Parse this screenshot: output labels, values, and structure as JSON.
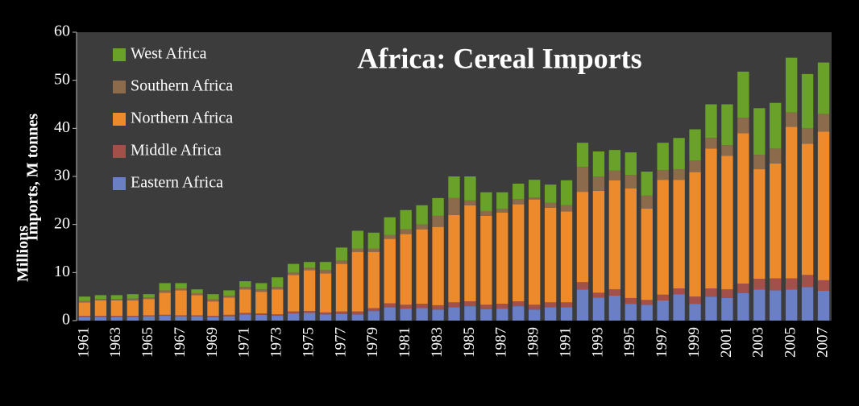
{
  "chart_data": {
    "type": "stacked_bar",
    "title": "Africa: Cereal Imports",
    "y_label": "Imports, M tonnes",
    "y_unit_label": "Millions",
    "categories": [
      "1961",
      null,
      "1963",
      null,
      "1965",
      null,
      "1967",
      null,
      "1969",
      null,
      "1971",
      null,
      "1973",
      null,
      "1975",
      null,
      "1977",
      null,
      "1979",
      null,
      "1981",
      null,
      "1983",
      null,
      "1985",
      null,
      "1987",
      null,
      "1989",
      null,
      "1991",
      null,
      "1993",
      null,
      "1995",
      null,
      "1997",
      null,
      "1999",
      null,
      "2001",
      null,
      "2003",
      null,
      "2005",
      null,
      "2007"
    ],
    "series": [
      {
        "name": "Eastern Africa",
        "color": "#6b7fc4",
        "values": [
          0.8,
          0.8,
          0.8,
          0.8,
          0.9,
          1.0,
          0.9,
          0.9,
          0.8,
          0.9,
          1.3,
          1.2,
          1.0,
          1.5,
          1.6,
          1.3,
          1.4,
          1.3,
          2.0,
          2.8,
          2.5,
          2.6,
          2.3,
          2.8,
          3.0,
          2.4,
          2.5,
          3.0,
          2.3,
          2.8,
          2.8,
          6.5,
          4.8,
          5.2,
          3.5,
          3.3,
          4.2,
          5.5,
          3.5,
          5.0,
          4.7,
          5.7,
          6.5,
          6.3,
          6.5,
          7.0,
          6.2
        ]
      },
      {
        "name": "Middle Africa",
        "color": "#a34f4a",
        "values": [
          0.2,
          0.2,
          0.2,
          0.2,
          0.2,
          0.2,
          0.2,
          0.2,
          0.2,
          0.3,
          0.3,
          0.3,
          0.3,
          0.4,
          0.4,
          0.4,
          0.5,
          0.6,
          0.6,
          0.8,
          0.8,
          0.9,
          0.9,
          1.0,
          1.0,
          0.9,
          1.0,
          1.0,
          1.0,
          1.0,
          1.0,
          1.5,
          1.0,
          1.3,
          1.2,
          1.0,
          1.2,
          1.2,
          1.5,
          1.7,
          1.8,
          2.0,
          2.2,
          2.5,
          2.3,
          2.5,
          2.2
        ]
      },
      {
        "name": "Northern Africa",
        "color": "#ed8a2b",
        "values": [
          2.8,
          3.2,
          3.2,
          3.2,
          3.4,
          4.6,
          5.2,
          4.2,
          3.0,
          3.6,
          4.9,
          4.5,
          5.2,
          7.6,
          8.5,
          8.1,
          9.9,
          12.4,
          11.7,
          13.4,
          14.7,
          15.5,
          16.3,
          18.2,
          20.0,
          18.5,
          19.0,
          20.2,
          21.9,
          19.7,
          18.9,
          18.8,
          21.2,
          22.7,
          22.8,
          19.0,
          23.9,
          22.6,
          25.9,
          29.1,
          27.8,
          31.3,
          22.8,
          23.9,
          31.5,
          27.3,
          30.9
        ]
      },
      {
        "name": "Southern Africa",
        "color": "#8c6a4c",
        "values": [
          0.3,
          0.3,
          0.3,
          0.4,
          0.3,
          0.5,
          0.4,
          0.4,
          0.4,
          0.4,
          0.5,
          0.5,
          0.5,
          0.5,
          0.5,
          0.7,
          0.7,
          0.7,
          0.7,
          0.8,
          1.0,
          1.0,
          2.3,
          3.5,
          1.0,
          1.0,
          0.8,
          1.1,
          0.4,
          1.0,
          1.3,
          5.2,
          3.0,
          2.0,
          2.8,
          2.7,
          2.0,
          2.2,
          2.4,
          2.2,
          2.2,
          3.2,
          3.0,
          3.1,
          3.0,
          3.2,
          3.7
        ]
      },
      {
        "name": "West Africa",
        "color": "#6aa128",
        "values": [
          0.9,
          0.8,
          0.8,
          0.9,
          0.7,
          1.5,
          1.1,
          0.8,
          1.1,
          1.1,
          1.2,
          1.3,
          2.0,
          1.8,
          1.2,
          1.7,
          2.7,
          3.7,
          3.3,
          3.7,
          4.0,
          4.0,
          3.7,
          4.5,
          5.0,
          3.9,
          3.4,
          3.2,
          3.7,
          3.8,
          5.2,
          5.0,
          5.2,
          4.3,
          4.7,
          5.0,
          5.7,
          6.5,
          6.5,
          7.0,
          8.5,
          9.6,
          9.7,
          9.5,
          11.4,
          11.3,
          10.7
        ]
      }
    ],
    "ylim": [
      0,
      60
    ],
    "yticks": [
      0,
      10,
      20,
      30,
      40,
      50,
      60
    ],
    "legend": "top-left"
  }
}
